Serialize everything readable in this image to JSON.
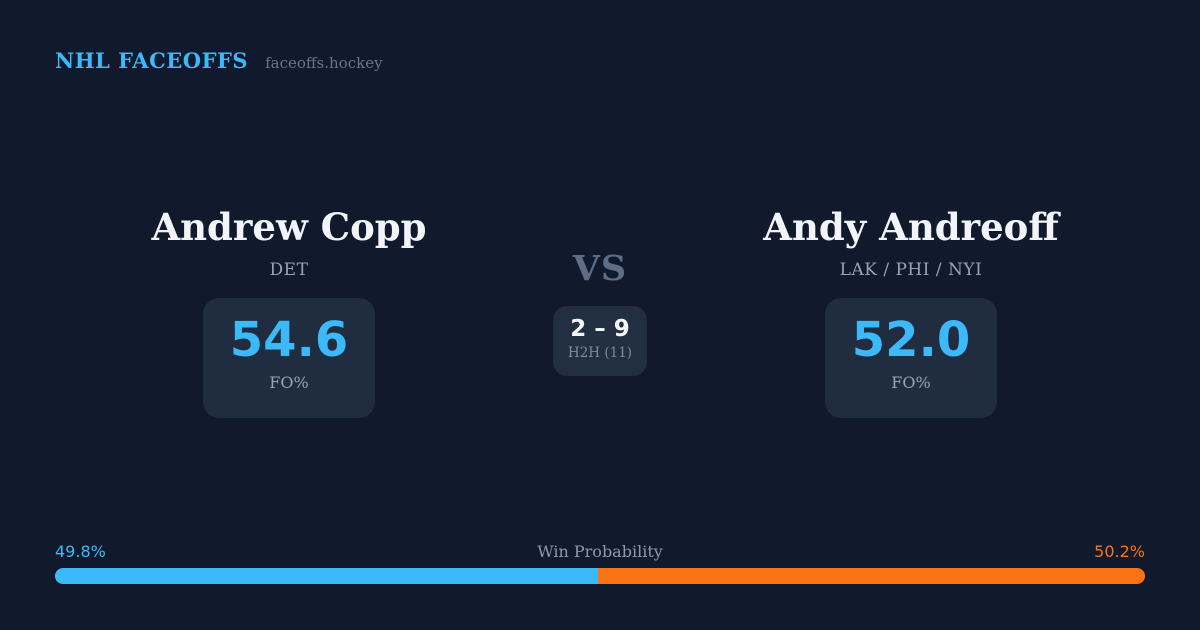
{
  "header": {
    "title": "NHL FACEOFFS",
    "site": "faceoffs.hockey"
  },
  "players": {
    "left": {
      "name": "Andrew Copp",
      "teams": "DET",
      "stat_value": "54.6",
      "stat_label": "FO%"
    },
    "right": {
      "name": "Andy Andreoff",
      "teams": "LAK / PHI / NYI",
      "stat_value": "52.0",
      "stat_label": "FO%"
    }
  },
  "matchup": {
    "vs_label": "VS",
    "h2h_score": "2 – 9",
    "h2h_label": "H2H (11)"
  },
  "win_probability": {
    "label": "Win Probability",
    "left_pct_label": "49.8%",
    "right_pct_label": "50.2%",
    "left_value": 49.8,
    "right_value": 50.2,
    "left_color": "#3cb9f8",
    "right_color": "#f97316"
  },
  "colors": {
    "background": "#111a2c",
    "card": "#202c40",
    "accent_blue": "#3cb9f8",
    "accent_orange": "#f97316",
    "text_primary": "#f1f5f9",
    "text_muted": "#97a3b6"
  }
}
